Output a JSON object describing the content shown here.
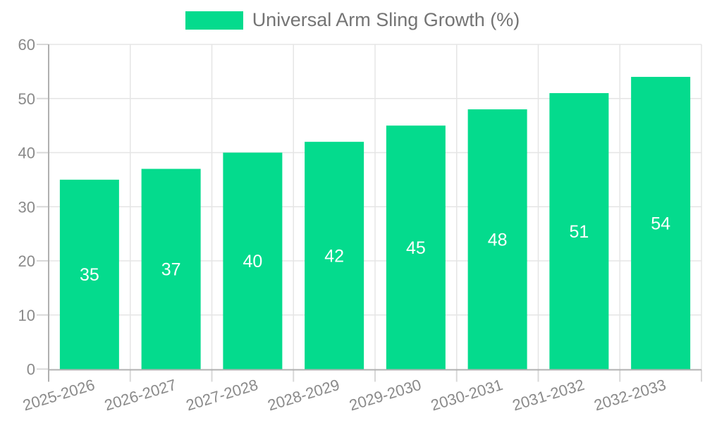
{
  "legend": {
    "label": "Universal Arm Sling Growth (%)"
  },
  "chart_data": {
    "type": "bar",
    "title": "Universal Arm Sling Growth (%)",
    "categories": [
      "2025-2026",
      "2026-2027",
      "2027-2028",
      "2028-2029",
      "2029-2030",
      "2030-2031",
      "2031-2032",
      "2032-2033"
    ],
    "values": [
      35,
      37,
      40,
      42,
      45,
      48,
      51,
      54
    ],
    "xlabel": "",
    "ylabel": "",
    "ylim": [
      0,
      60
    ],
    "yticks": [
      0,
      10,
      20,
      30,
      40,
      50,
      60
    ],
    "grid": true,
    "legend_position": "top-center",
    "value_labels": "inside-middle",
    "x_tick_rotation_deg": -17,
    "colors": {
      "bar": "#04DB8D",
      "grid": "#e5e5e5",
      "axis": "#b0b0b0",
      "tick": "#d8d8d8",
      "tick_text": "#8a8a8a",
      "legend_text": "#747474",
      "value_label": "#ffffff",
      "background": "#ffffff"
    }
  }
}
